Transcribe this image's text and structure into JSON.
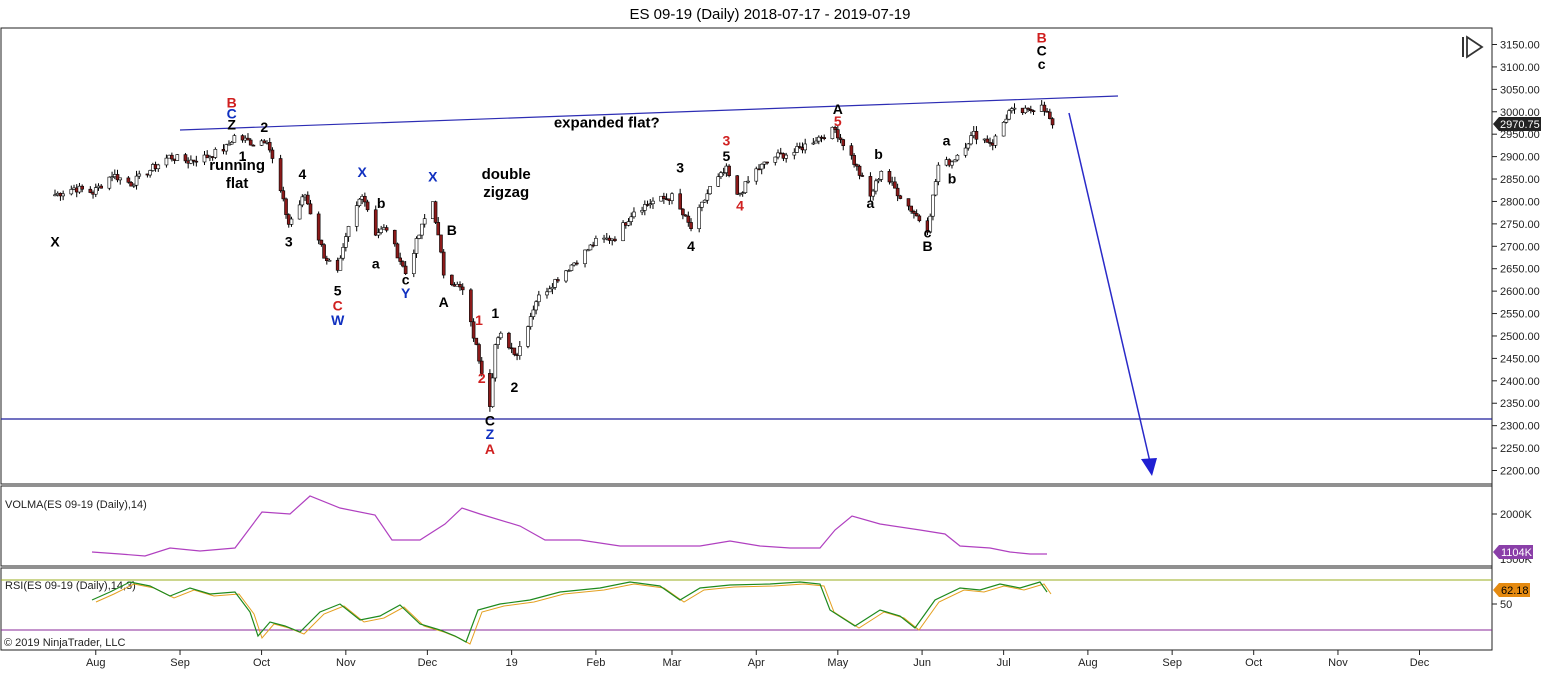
{
  "chart_data": {
    "type": "candlestick",
    "title": "ES 09-19 (Daily)  2018-07-17 - 2019-07-19",
    "copyright": "© 2019 NinjaTrader, LLC",
    "last_price_label": "2970.75",
    "price_axis": {
      "ylim": [
        2180,
        3170
      ],
      "ticks": [
        "2200.00",
        "2250.00",
        "2300.00",
        "2350.00",
        "2400.00",
        "2450.00",
        "2500.00",
        "2550.00",
        "2600.00",
        "2650.00",
        "2700.00",
        "2750.00",
        "2800.00",
        "2850.00",
        "2900.00",
        "2950.00",
        "3000.00",
        "3050.00",
        "3100.00",
        "3150.00"
      ]
    },
    "x_axis": {
      "ticks": [
        "Aug",
        "Sep",
        "Oct",
        "Nov",
        "Dec",
        "19",
        "Feb",
        "Mar",
        "Apr",
        "May",
        "Jun",
        "Jul",
        "Aug",
        "Sep",
        "Oct",
        "Nov",
        "Dec"
      ]
    },
    "price_series": [
      {
        "date": "2018-07-17",
        "close": 2815
      },
      {
        "date": "2018-07-24",
        "close": 2830
      },
      {
        "date": "2018-07-31",
        "close": 2820
      },
      {
        "date": "2018-08-07",
        "close": 2860
      },
      {
        "date": "2018-08-14",
        "close": 2840
      },
      {
        "date": "2018-08-21",
        "close": 2870
      },
      {
        "date": "2018-08-28",
        "close": 2900
      },
      {
        "date": "2018-09-04",
        "close": 2890
      },
      {
        "date": "2018-09-11",
        "close": 2900
      },
      {
        "date": "2018-09-18",
        "close": 2920
      },
      {
        "date": "2018-09-21",
        "close": 2945
      },
      {
        "date": "2018-09-28",
        "close": 2930
      },
      {
        "date": "2018-10-03",
        "close": 2940
      },
      {
        "date": "2018-10-11",
        "close": 2750
      },
      {
        "date": "2018-10-17",
        "close": 2815
      },
      {
        "date": "2018-10-24",
        "close": 2680
      },
      {
        "date": "2018-10-29",
        "close": 2640
      },
      {
        "date": "2018-11-02",
        "close": 2740
      },
      {
        "date": "2018-11-07",
        "close": 2820
      },
      {
        "date": "2018-11-12",
        "close": 2730
      },
      {
        "date": "2018-11-16",
        "close": 2740
      },
      {
        "date": "2018-11-23",
        "close": 2640
      },
      {
        "date": "2018-11-30",
        "close": 2760
      },
      {
        "date": "2018-12-03",
        "close": 2800
      },
      {
        "date": "2018-12-07",
        "close": 2640
      },
      {
        "date": "2018-12-14",
        "close": 2600
      },
      {
        "date": "2018-12-20",
        "close": 2450
      },
      {
        "date": "2018-12-24",
        "close": 2350
      },
      {
        "date": "2018-12-26",
        "close": 2480
      },
      {
        "date": "2018-12-28",
        "close": 2500
      },
      {
        "date": "2019-01-03",
        "close": 2460
      },
      {
        "date": "2019-01-10",
        "close": 2580
      },
      {
        "date": "2019-01-18",
        "close": 2630
      },
      {
        "date": "2019-01-25",
        "close": 2670
      },
      {
        "date": "2019-02-01",
        "close": 2710
      },
      {
        "date": "2019-02-08",
        "close": 2720
      },
      {
        "date": "2019-02-15",
        "close": 2780
      },
      {
        "date": "2019-02-22",
        "close": 2800
      },
      {
        "date": "2019-03-01",
        "close": 2810
      },
      {
        "date": "2019-03-08",
        "close": 2740
      },
      {
        "date": "2019-03-15",
        "close": 2830
      },
      {
        "date": "2019-03-21",
        "close": 2870
      },
      {
        "date": "2019-03-25",
        "close": 2810
      },
      {
        "date": "2019-04-01",
        "close": 2870
      },
      {
        "date": "2019-04-08",
        "close": 2900
      },
      {
        "date": "2019-04-15",
        "close": 2910
      },
      {
        "date": "2019-04-23",
        "close": 2940
      },
      {
        "date": "2019-04-30",
        "close": 2960
      },
      {
        "date": "2019-05-06",
        "close": 2900
      },
      {
        "date": "2019-05-13",
        "close": 2810
      },
      {
        "date": "2019-05-17",
        "close": 2870
      },
      {
        "date": "2019-05-23",
        "close": 2820
      },
      {
        "date": "2019-05-31",
        "close": 2760
      },
      {
        "date": "2019-06-03",
        "close": 2740
      },
      {
        "date": "2019-06-07",
        "close": 2880
      },
      {
        "date": "2019-06-12",
        "close": 2890
      },
      {
        "date": "2019-06-20",
        "close": 2950
      },
      {
        "date": "2019-06-27",
        "close": 2930
      },
      {
        "date": "2019-07-03",
        "close": 3000
      },
      {
        "date": "2019-07-10",
        "close": 3000
      },
      {
        "date": "2019-07-15",
        "close": 3020
      },
      {
        "date": "2019-07-19",
        "close": 2970.75
      }
    ],
    "annotations": [
      {
        "text": "X",
        "date": "2018-07-17",
        "price": 2700,
        "color": "#000000"
      },
      {
        "text": "B",
        "date": "2018-09-20",
        "price": 3010,
        "color": "#d02020"
      },
      {
        "text": "C",
        "date": "2018-09-20",
        "price": 2985,
        "color": "#1030c0"
      },
      {
        "text": "Z",
        "date": "2018-09-20",
        "price": 2960,
        "color": "#000000"
      },
      {
        "text": "2",
        "date": "2018-10-02",
        "price": 2955,
        "color": "#000000"
      },
      {
        "text": "1",
        "date": "2018-09-24",
        "price": 2890,
        "color": "#000000"
      },
      {
        "text": "4",
        "date": "2018-10-16",
        "price": 2850,
        "color": "#000000"
      },
      {
        "text": "3",
        "date": "2018-10-11",
        "price": 2700,
        "color": "#000000"
      },
      {
        "text": "5",
        "date": "2018-10-29",
        "price": 2590,
        "color": "#000000"
      },
      {
        "text": "C",
        "date": "2018-10-29",
        "price": 2557,
        "color": "#d02020"
      },
      {
        "text": "W",
        "date": "2018-10-29",
        "price": 2524,
        "color": "#1030c0"
      },
      {
        "text": "X",
        "date": "2018-11-07",
        "price": 2855,
        "color": "#1030c0"
      },
      {
        "text": "b",
        "date": "2018-11-14",
        "price": 2785,
        "color": "#000000"
      },
      {
        "text": "a",
        "date": "2018-11-12",
        "price": 2650,
        "color": "#000000"
      },
      {
        "text": "c",
        "date": "2018-11-23",
        "price": 2615,
        "color": "#000000"
      },
      {
        "text": "Y",
        "date": "2018-11-23",
        "price": 2585,
        "color": "#1030c0"
      },
      {
        "text": "X",
        "date": "2018-12-03",
        "price": 2845,
        "color": "#1030c0"
      },
      {
        "text": "B",
        "date": "2018-12-10",
        "price": 2725,
        "color": "#000000"
      },
      {
        "text": "A",
        "date": "2018-12-07",
        "price": 2565,
        "color": "#000000"
      },
      {
        "text": "1",
        "date": "2018-12-20",
        "price": 2525,
        "color": "#d02020"
      },
      {
        "text": "1",
        "date": "2018-12-26",
        "price": 2540,
        "color": "#000000"
      },
      {
        "text": "2",
        "date": "2018-12-21",
        "price": 2395,
        "color": "#d02020"
      },
      {
        "text": "2",
        "date": "2019-01-02",
        "price": 2375,
        "color": "#000000"
      },
      {
        "text": "C",
        "date": "2018-12-24",
        "price": 2300,
        "color": "#000000"
      },
      {
        "text": "Z",
        "date": "2018-12-24",
        "price": 2270,
        "color": "#1030c0"
      },
      {
        "text": "A",
        "date": "2018-12-24",
        "price": 2237,
        "color": "#d02020"
      },
      {
        "text": "3",
        "date": "2019-03-04",
        "price": 2865,
        "color": "#000000"
      },
      {
        "text": "4",
        "date": "2019-03-08",
        "price": 2690,
        "color": "#000000"
      },
      {
        "text": "3",
        "date": "2019-03-21",
        "price": 2925,
        "color": "#d02020"
      },
      {
        "text": "5",
        "date": "2019-03-21",
        "price": 2890,
        "color": "#000000"
      },
      {
        "text": "4",
        "date": "2019-03-26",
        "price": 2780,
        "color": "#d02020"
      },
      {
        "text": "A",
        "date": "2019-05-01",
        "price": 2995,
        "color": "#000000"
      },
      {
        "text": "5",
        "date": "2019-05-01",
        "price": 2968,
        "color": "#d02020"
      },
      {
        "text": "b",
        "date": "2019-05-16",
        "price": 2895,
        "color": "#000000"
      },
      {
        "text": "a",
        "date": "2019-05-13",
        "price": 2785,
        "color": "#000000"
      },
      {
        "text": "a",
        "date": "2019-06-10",
        "price": 2925,
        "color": "#000000"
      },
      {
        "text": "b",
        "date": "2019-06-12",
        "price": 2840,
        "color": "#000000"
      },
      {
        "text": "c",
        "date": "2019-06-03",
        "price": 2720,
        "color": "#000000"
      },
      {
        "text": "B",
        "date": "2019-06-03",
        "price": 2690,
        "color": "#000000"
      },
      {
        "text": "B",
        "date": "2019-07-15",
        "price": 3155,
        "color": "#d02020"
      },
      {
        "text": "C",
        "date": "2019-07-15",
        "price": 3125,
        "color": "#000000"
      },
      {
        "text": "c",
        "date": "2019-07-15",
        "price": 3095,
        "color": "#000000"
      }
    ],
    "notes": [
      {
        "text": "running",
        "date": "2018-09-22",
        "price": 2870
      },
      {
        "text": "flat",
        "date": "2018-09-22",
        "price": 2830
      },
      {
        "text": "double",
        "date": "2018-12-30",
        "price": 2850
      },
      {
        "text": "zigzag",
        "date": "2018-12-30",
        "price": 2810
      },
      {
        "text": "expanded flat?",
        "date": "2019-02-05",
        "price": 2965
      }
    ],
    "volma": {
      "label": "VOLMA(ES 09-19 (Daily),14)",
      "value_label": "1104K",
      "tick_labels": [
        "2000K",
        "1500K"
      ]
    },
    "rsi": {
      "label": "RSI(ES 09-19 (Daily),14,3)",
      "value_label": "62.18",
      "tick_labels": [
        "50"
      ]
    }
  }
}
